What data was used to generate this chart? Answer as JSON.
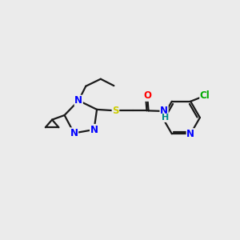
{
  "background_color": "#ebebeb",
  "bond_color": "#1a1a1a",
  "atom_colors": {
    "N": "#0000ff",
    "O": "#ff0000",
    "S": "#cccc00",
    "Cl": "#00aa00",
    "H": "#008888",
    "C": "#1a1a1a"
  },
  "figsize": [
    3.0,
    3.0
  ],
  "dpi": 100
}
